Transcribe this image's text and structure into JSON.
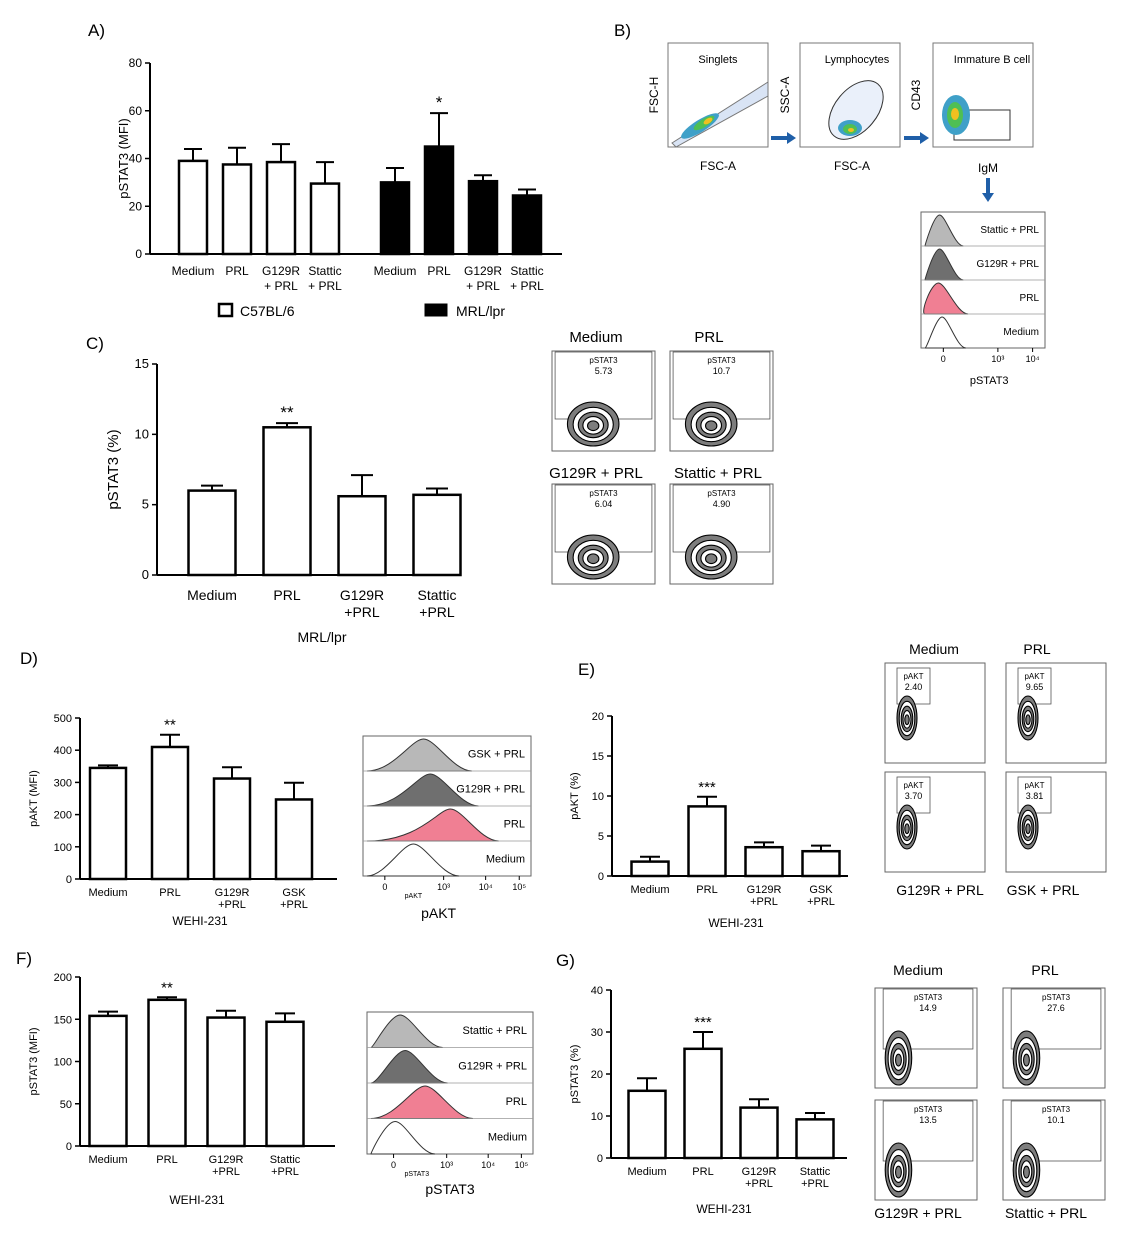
{
  "colors": {
    "c57_fill": "#ffffff",
    "mrl_fill": "#000000",
    "bar_edge": "#000000",
    "prl_pink": "#f07f93",
    "gsk_grey": "#b8b8b8",
    "g129_grey": "#6f6f6f",
    "arrow": "#1f5fa8"
  },
  "panelA": {
    "label": "A)",
    "legend": {
      "c57": "C57BL/6",
      "mrl": "MRL/lpr"
    },
    "chart_data": {
      "type": "bar",
      "title": "",
      "ylabel": "pSTAT3 (MFI)",
      "ylim": [
        0,
        80
      ],
      "yticks": [
        0,
        20,
        40,
        60,
        80
      ],
      "categories": [
        "Medium",
        "PRL",
        "G129R\n+ PRL",
        "Stattic\n+ PRL"
      ],
      "series": [
        {
          "name": "C57BL/6",
          "values": [
            39,
            37.5,
            38.5,
            29.5
          ],
          "errors": [
            5,
            7,
            7.5,
            9
          ]
        },
        {
          "name": "MRL/lpr",
          "values": [
            30,
            45,
            30.5,
            24.5
          ],
          "errors": [
            6,
            14,
            2.5,
            2.5
          ]
        }
      ],
      "annotations": [
        {
          "series": "MRL/lpr",
          "category": "PRL",
          "text": "*"
        }
      ]
    }
  },
  "panelB": {
    "label": "B)",
    "gates": [
      {
        "title": "Singlets",
        "ylabel": "FSC-H",
        "xlabel": "FSC-A"
      },
      {
        "title": "Lymphocytes",
        "ylabel": "SSC-A",
        "xlabel": "FSC-A"
      },
      {
        "title": "Immature B cell",
        "ylabel": "CD43",
        "xlabel": "IgM"
      }
    ],
    "histogram": {
      "rows": [
        "Stattic + PRL",
        "G129R + PRL",
        "PRL",
        "Medium"
      ],
      "xlabel": "pSTAT3",
      "ticks": [
        "0",
        "10³",
        "10⁴"
      ]
    }
  },
  "panelC": {
    "label": "C)",
    "group_label": "MRL/lpr",
    "chart_data": {
      "type": "bar",
      "ylabel": "pSTAT3 (%)",
      "ylim": [
        0,
        15
      ],
      "yticks": [
        0,
        5,
        10,
        15
      ],
      "categories": [
        "Medium",
        "PRL",
        "G129R\n+PRL",
        "Stattic\n+PRL"
      ],
      "values": [
        6,
        10.5,
        5.6,
        5.7
      ],
      "errors": [
        0.35,
        0.3,
        1.5,
        0.45
      ],
      "annotations": [
        {
          "category": "PRL",
          "text": "**"
        }
      ]
    },
    "plots": [
      {
        "title": "Medium",
        "gate": "pSTAT3",
        "value": "5.73"
      },
      {
        "title": "PRL",
        "gate": "pSTAT3",
        "value": "10.7"
      },
      {
        "title": "G129R + PRL",
        "gate": "pSTAT3",
        "value": "6.04"
      },
      {
        "title": "Stattic + PRL",
        "gate": "pSTAT3",
        "value": "4.90"
      }
    ]
  },
  "panelD": {
    "label": "D)",
    "cell_line": "WEHI-231",
    "chart_data": {
      "type": "bar",
      "ylabel": "pAKT (MFI)",
      "ylim": [
        0,
        500
      ],
      "yticks": [
        0,
        100,
        200,
        300,
        400,
        500
      ],
      "categories": [
        "Medium",
        "PRL",
        "G129R\n+PRL",
        "GSK\n+PRL"
      ],
      "values": [
        345,
        410,
        312,
        247
      ],
      "errors": [
        8,
        38,
        35,
        52
      ],
      "annotations": [
        {
          "category": "PRL",
          "text": "**"
        }
      ]
    },
    "histogram": {
      "rows": [
        "GSK + PRL",
        "G129R + PRL",
        "PRL",
        "Medium"
      ],
      "xlabel": "pAKT",
      "axis_small": "pAKT",
      "ticks": [
        "0",
        "10³",
        "10⁴",
        "10⁵"
      ]
    }
  },
  "panelE": {
    "label": "E)",
    "cell_line": "WEHI-231",
    "chart_data": {
      "type": "bar",
      "ylabel": "pAKT (%)",
      "ylim": [
        0,
        20
      ],
      "yticks": [
        0,
        5,
        10,
        15,
        20
      ],
      "categories": [
        "Medium",
        "PRL",
        "G129R\n+PRL",
        "GSK\n+PRL"
      ],
      "values": [
        1.8,
        8.7,
        3.6,
        3.1
      ],
      "errors": [
        0.6,
        1.2,
        0.6,
        0.7
      ],
      "annotations": [
        {
          "category": "PRL",
          "text": "***"
        }
      ]
    },
    "plots": [
      {
        "title": "Medium",
        "gate": "pAKT",
        "value": "2.40"
      },
      {
        "title": "PRL",
        "gate": "pAKT",
        "value": "9.65"
      },
      {
        "title": "G129R + PRL",
        "gate": "pAKT",
        "value": "3.70"
      },
      {
        "title": "GSK + PRL",
        "gate": "pAKT",
        "value": "3.81"
      }
    ]
  },
  "panelF": {
    "label": "F)",
    "cell_line": "WEHI-231",
    "chart_data": {
      "type": "bar",
      "ylabel": "pSTAT3 (MFI)",
      "ylim": [
        0,
        200
      ],
      "yticks": [
        0,
        50,
        100,
        150,
        200
      ],
      "categories": [
        "Medium",
        "PRL",
        "G129R\n+PRL",
        "Stattic\n+PRL"
      ],
      "values": [
        154,
        173,
        152,
        147
      ],
      "errors": [
        5,
        3,
        8,
        10
      ],
      "annotations": [
        {
          "category": "PRL",
          "text": "**"
        }
      ]
    },
    "histogram": {
      "rows": [
        "Stattic + PRL",
        "G129R + PRL",
        "PRL",
        "Medium"
      ],
      "xlabel": "pSTAT3",
      "axis_small": "pSTAT3",
      "ticks": [
        "0",
        "10³",
        "10⁴",
        "10⁵"
      ]
    }
  },
  "panelG": {
    "label": "G)",
    "cell_line": "WEHI-231",
    "chart_data": {
      "type": "bar",
      "ylabel": "pSTAT3 (%)",
      "ylim": [
        0,
        40
      ],
      "yticks": [
        0,
        10,
        20,
        30,
        40
      ],
      "categories": [
        "Medium",
        "PRL",
        "G129R\n+PRL",
        "Stattic\n+PRL"
      ],
      "values": [
        16,
        26,
        12,
        9.2
      ],
      "errors": [
        3,
        4,
        2,
        1.5
      ],
      "annotations": [
        {
          "category": "PRL",
          "text": "***"
        }
      ]
    },
    "plots": [
      {
        "title": "Medium",
        "gate": "pSTAT3",
        "value": "14.9"
      },
      {
        "title": "PRL",
        "gate": "pSTAT3",
        "value": "27.6"
      },
      {
        "title": "G129R + PRL",
        "gate": "pSTAT3",
        "value": "13.5"
      },
      {
        "title": "Stattic + PRL",
        "gate": "pSTAT3",
        "value": "10.1"
      }
    ]
  }
}
